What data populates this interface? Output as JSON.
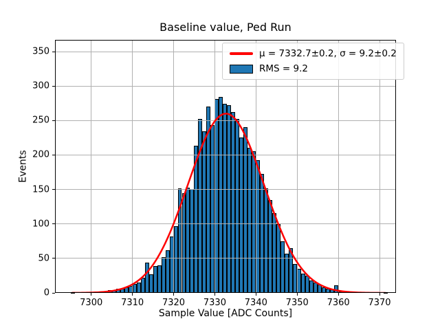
{
  "figure": {
    "title": "Baseline value, Ped Run"
  },
  "axes": {
    "xlabel": "Sample Value [ADC Counts]",
    "ylabel": "Events"
  },
  "legend": {
    "entries": [
      {
        "swatch": "red-fit-line",
        "label": "μ = 7332.7±0.2, σ = 9.2±0.2"
      },
      {
        "swatch": "blue-histogram-patch",
        "label": "RMS = 9.2"
      }
    ]
  },
  "chart_data": {
    "type": "bar",
    "subtype": "histogram-with-gaussian-fit",
    "title": "Baseline value, Ped Run",
    "xlabel": "Sample Value [ADC Counts]",
    "ylabel": "Events",
    "xlim": [
      7291.2,
      7374.0
    ],
    "ylim": [
      0,
      367
    ],
    "xticks": [
      7300,
      7310,
      7320,
      7330,
      7340,
      7350,
      7360,
      7370
    ],
    "yticks": [
      0,
      50,
      100,
      150,
      200,
      250,
      300,
      350
    ],
    "grid": true,
    "grid_over_bars": true,
    "legend_position": "upper right",
    "bin_width": 1,
    "bin_left_start": 7295,
    "counts": [
      1,
      0,
      0,
      0,
      0,
      0,
      0,
      0,
      0,
      4,
      4,
      6,
      6,
      8,
      10,
      13,
      15,
      22,
      44,
      27,
      39,
      40,
      52,
      62,
      82,
      97,
      152,
      145,
      153,
      151,
      213,
      252,
      234,
      270,
      243,
      281,
      284,
      274,
      272,
      262,
      252,
      225,
      240,
      210,
      205,
      192,
      173,
      152,
      135,
      116,
      100,
      75,
      57,
      65,
      42,
      35,
      28,
      25,
      18,
      15,
      12,
      8,
      6,
      5,
      11,
      2,
      2,
      0,
      0,
      0,
      0,
      0,
      0,
      0,
      0,
      0,
      1
    ],
    "hist_label": "RMS = 9.2",
    "rms": 9.2,
    "fit": {
      "type": "gaussian",
      "label": "μ = 7332.7±0.2, σ = 9.2±0.2",
      "mu": 7332.7,
      "mu_err": 0.2,
      "sigma": 9.2,
      "sigma_err": 0.2,
      "amplitude": 260,
      "x_range": [
        7295.4,
        7371.6
      ]
    },
    "colors": {
      "bar_fill": "#1f77b4",
      "bar_edge": "#000000",
      "fit_line": "#ff0000",
      "grid": "#b0b0b0",
      "background": "#ffffff",
      "legend_edge": "#cccccc"
    }
  }
}
